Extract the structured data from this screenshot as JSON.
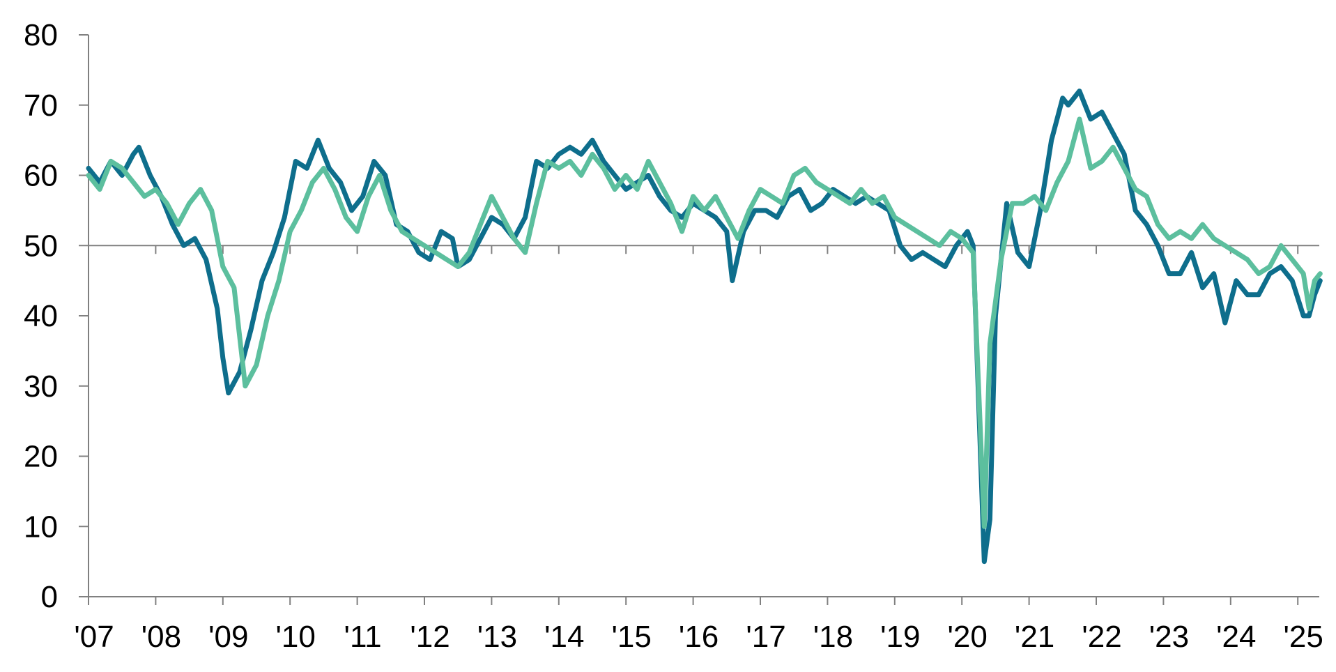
{
  "chart_data": {
    "type": "line",
    "title": "",
    "xlabel": "",
    "ylabel": "",
    "ylim": [
      0,
      80
    ],
    "yticks": [
      "0",
      "10",
      "20",
      "30",
      "40",
      "50",
      "60",
      "70",
      "80"
    ],
    "reference_line": 50,
    "x_start": "2007-01",
    "x_end": "2025-05",
    "xticks": [
      {
        "label": "'07",
        "year": 2007
      },
      {
        "label": "'08",
        "year": 2008
      },
      {
        "label": "'09",
        "year": 2009
      },
      {
        "label": "'10",
        "year": 2010
      },
      {
        "label": "'11",
        "year": 2011
      },
      {
        "label": "'12",
        "year": 2012
      },
      {
        "label": "'13",
        "year": 2013
      },
      {
        "label": "'14",
        "year": 2014
      },
      {
        "label": "'15",
        "year": 2015
      },
      {
        "label": "'16",
        "year": 2016
      },
      {
        "label": "'17",
        "year": 2017
      },
      {
        "label": "'18",
        "year": 2018
      },
      {
        "label": "'19",
        "year": 2019
      },
      {
        "label": "'20",
        "year": 2020
      },
      {
        "label": "'21",
        "year": 2021
      },
      {
        "label": "'22",
        "year": 2022
      },
      {
        "label": "'23",
        "year": 2023
      },
      {
        "label": "'24",
        "year": 2024
      },
      {
        "label": "'25",
        "year": 2025
      }
    ],
    "grid": false,
    "legend": "none",
    "series": [
      {
        "color": "#0e6e8c",
        "points": [
          [
            "2007-01",
            61
          ],
          [
            "2007-03",
            59
          ],
          [
            "2007-05",
            62
          ],
          [
            "2007-07",
            60
          ],
          [
            "2007-09",
            63
          ],
          [
            "2007-10",
            64
          ],
          [
            "2007-12",
            60
          ],
          [
            "2008-02",
            57
          ],
          [
            "2008-04",
            53
          ],
          [
            "2008-06",
            50
          ],
          [
            "2008-08",
            51
          ],
          [
            "2008-10",
            48
          ],
          [
            "2008-12",
            41
          ],
          [
            "2009-01",
            34
          ],
          [
            "2009-02",
            29
          ],
          [
            "2009-04",
            32
          ],
          [
            "2009-06",
            38
          ],
          [
            "2009-08",
            45
          ],
          [
            "2009-10",
            49
          ],
          [
            "2009-12",
            54
          ],
          [
            "2010-02",
            62
          ],
          [
            "2010-04",
            61
          ],
          [
            "2010-06",
            65
          ],
          [
            "2010-08",
            61
          ],
          [
            "2010-10",
            59
          ],
          [
            "2010-12",
            55
          ],
          [
            "2011-02",
            57
          ],
          [
            "2011-04",
            62
          ],
          [
            "2011-06",
            60
          ],
          [
            "2011-08",
            53
          ],
          [
            "2011-10",
            52
          ],
          [
            "2011-12",
            49
          ],
          [
            "2012-02",
            48
          ],
          [
            "2012-04",
            52
          ],
          [
            "2012-06",
            51
          ],
          [
            "2012-07",
            47
          ],
          [
            "2012-09",
            48
          ],
          [
            "2012-11",
            51
          ],
          [
            "2013-01",
            54
          ],
          [
            "2013-03",
            53
          ],
          [
            "2013-05",
            51
          ],
          [
            "2013-07",
            54
          ],
          [
            "2013-09",
            62
          ],
          [
            "2013-11",
            61
          ],
          [
            "2014-01",
            63
          ],
          [
            "2014-03",
            64
          ],
          [
            "2014-05",
            63
          ],
          [
            "2014-07",
            65
          ],
          [
            "2014-09",
            62
          ],
          [
            "2014-11",
            60
          ],
          [
            "2015-01",
            58
          ],
          [
            "2015-03",
            59
          ],
          [
            "2015-05",
            60
          ],
          [
            "2015-07",
            57
          ],
          [
            "2015-09",
            55
          ],
          [
            "2015-11",
            54
          ],
          [
            "2016-01",
            56
          ],
          [
            "2016-03",
            55
          ],
          [
            "2016-05",
            54
          ],
          [
            "2016-07",
            52
          ],
          [
            "2016-08",
            45
          ],
          [
            "2016-10",
            52
          ],
          [
            "2016-12",
            55
          ],
          [
            "2017-02",
            55
          ],
          [
            "2017-04",
            54
          ],
          [
            "2017-06",
            57
          ],
          [
            "2017-08",
            58
          ],
          [
            "2017-10",
            55
          ],
          [
            "2017-12",
            56
          ],
          [
            "2018-02",
            58
          ],
          [
            "2018-04",
            57
          ],
          [
            "2018-06",
            56
          ],
          [
            "2018-08",
            57
          ],
          [
            "2018-10",
            56
          ],
          [
            "2018-12",
            55
          ],
          [
            "2019-02",
            50
          ],
          [
            "2019-04",
            48
          ],
          [
            "2019-06",
            49
          ],
          [
            "2019-08",
            48
          ],
          [
            "2019-10",
            47
          ],
          [
            "2019-12",
            50
          ],
          [
            "2020-02",
            52
          ],
          [
            "2020-03",
            50
          ],
          [
            "2020-05",
            5
          ],
          [
            "2020-06",
            11
          ],
          [
            "2020-07",
            40
          ],
          [
            "2020-09",
            56
          ],
          [
            "2020-11",
            49
          ],
          [
            "2021-01",
            47
          ],
          [
            "2021-03",
            55
          ],
          [
            "2021-05",
            65
          ],
          [
            "2021-07",
            71
          ],
          [
            "2021-08",
            70
          ],
          [
            "2021-10",
            72
          ],
          [
            "2021-12",
            68
          ],
          [
            "2022-02",
            69
          ],
          [
            "2022-04",
            66
          ],
          [
            "2022-06",
            63
          ],
          [
            "2022-08",
            55
          ],
          [
            "2022-10",
            53
          ],
          [
            "2022-12",
            50
          ],
          [
            "2023-02",
            46
          ],
          [
            "2023-04",
            46
          ],
          [
            "2023-06",
            49
          ],
          [
            "2023-08",
            44
          ],
          [
            "2023-10",
            46
          ],
          [
            "2023-12",
            39
          ],
          [
            "2024-02",
            45
          ],
          [
            "2024-04",
            43
          ],
          [
            "2024-06",
            43
          ],
          [
            "2024-08",
            46
          ],
          [
            "2024-10",
            47
          ],
          [
            "2024-12",
            45
          ],
          [
            "2025-02",
            40
          ],
          [
            "2025-03",
            40
          ],
          [
            "2025-04",
            43
          ],
          [
            "2025-05",
            45
          ]
        ]
      },
      {
        "color": "#5cbf9e",
        "points": [
          [
            "2007-01",
            60
          ],
          [
            "2007-03",
            58
          ],
          [
            "2007-05",
            62
          ],
          [
            "2007-07",
            61
          ],
          [
            "2007-09",
            59
          ],
          [
            "2007-11",
            57
          ],
          [
            "2008-01",
            58
          ],
          [
            "2008-03",
            56
          ],
          [
            "2008-05",
            53
          ],
          [
            "2008-07",
            56
          ],
          [
            "2008-09",
            58
          ],
          [
            "2008-11",
            55
          ],
          [
            "2009-01",
            47
          ],
          [
            "2009-03",
            44
          ],
          [
            "2009-05",
            30
          ],
          [
            "2009-07",
            33
          ],
          [
            "2009-09",
            40
          ],
          [
            "2009-11",
            45
          ],
          [
            "2010-01",
            52
          ],
          [
            "2010-03",
            55
          ],
          [
            "2010-05",
            59
          ],
          [
            "2010-07",
            61
          ],
          [
            "2010-09",
            58
          ],
          [
            "2010-11",
            54
          ],
          [
            "2011-01",
            52
          ],
          [
            "2011-03",
            57
          ],
          [
            "2011-05",
            60
          ],
          [
            "2011-07",
            55
          ],
          [
            "2011-09",
            52
          ],
          [
            "2011-11",
            51
          ],
          [
            "2012-01",
            50
          ],
          [
            "2012-03",
            49
          ],
          [
            "2012-05",
            48
          ],
          [
            "2012-07",
            47
          ],
          [
            "2012-09",
            49
          ],
          [
            "2012-11",
            53
          ],
          [
            "2013-01",
            57
          ],
          [
            "2013-03",
            54
          ],
          [
            "2013-05",
            51
          ],
          [
            "2013-07",
            49
          ],
          [
            "2013-09",
            56
          ],
          [
            "2013-11",
            62
          ],
          [
            "2014-01",
            61
          ],
          [
            "2014-03",
            62
          ],
          [
            "2014-05",
            60
          ],
          [
            "2014-07",
            63
          ],
          [
            "2014-09",
            61
          ],
          [
            "2014-11",
            58
          ],
          [
            "2015-01",
            60
          ],
          [
            "2015-03",
            58
          ],
          [
            "2015-05",
            62
          ],
          [
            "2015-07",
            59
          ],
          [
            "2015-09",
            56
          ],
          [
            "2015-11",
            52
          ],
          [
            "2016-01",
            57
          ],
          [
            "2016-03",
            55
          ],
          [
            "2016-05",
            57
          ],
          [
            "2016-07",
            54
          ],
          [
            "2016-09",
            51
          ],
          [
            "2016-11",
            55
          ],
          [
            "2017-01",
            58
          ],
          [
            "2017-03",
            57
          ],
          [
            "2017-05",
            56
          ],
          [
            "2017-07",
            60
          ],
          [
            "2017-09",
            61
          ],
          [
            "2017-11",
            59
          ],
          [
            "2018-01",
            58
          ],
          [
            "2018-03",
            57
          ],
          [
            "2018-05",
            56
          ],
          [
            "2018-07",
            58
          ],
          [
            "2018-09",
            56
          ],
          [
            "2018-11",
            57
          ],
          [
            "2019-01",
            54
          ],
          [
            "2019-03",
            53
          ],
          [
            "2019-05",
            52
          ],
          [
            "2019-07",
            51
          ],
          [
            "2019-09",
            50
          ],
          [
            "2019-11",
            52
          ],
          [
            "2020-01",
            51
          ],
          [
            "2020-03",
            49
          ],
          [
            "2020-05",
            10
          ],
          [
            "2020-06",
            36
          ],
          [
            "2020-08",
            48
          ],
          [
            "2020-10",
            56
          ],
          [
            "2020-12",
            56
          ],
          [
            "2021-02",
            57
          ],
          [
            "2021-04",
            55
          ],
          [
            "2021-06",
            59
          ],
          [
            "2021-08",
            62
          ],
          [
            "2021-10",
            68
          ],
          [
            "2021-12",
            61
          ],
          [
            "2022-02",
            62
          ],
          [
            "2022-04",
            64
          ],
          [
            "2022-06",
            61
          ],
          [
            "2022-08",
            58
          ],
          [
            "2022-10",
            57
          ],
          [
            "2022-12",
            53
          ],
          [
            "2023-02",
            51
          ],
          [
            "2023-04",
            52
          ],
          [
            "2023-06",
            51
          ],
          [
            "2023-08",
            53
          ],
          [
            "2023-10",
            51
          ],
          [
            "2023-12",
            50
          ],
          [
            "2024-02",
            49
          ],
          [
            "2024-04",
            48
          ],
          [
            "2024-06",
            46
          ],
          [
            "2024-08",
            47
          ],
          [
            "2024-10",
            50
          ],
          [
            "2024-12",
            48
          ],
          [
            "2025-02",
            46
          ],
          [
            "2025-03",
            41
          ],
          [
            "2025-04",
            45
          ],
          [
            "2025-05",
            46
          ]
        ]
      }
    ]
  }
}
